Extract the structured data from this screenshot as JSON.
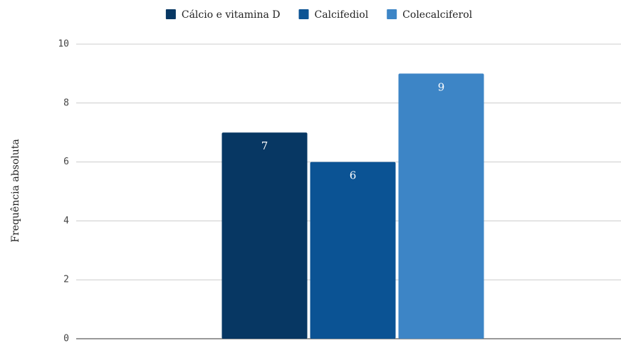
{
  "chart_data": {
    "type": "bar",
    "categories": [
      null
    ],
    "series": [
      {
        "name": "Cálcio e vitamina D",
        "color": "#073763",
        "values": [
          7
        ]
      },
      {
        "name": "Calcifediol",
        "color": "#0b5394",
        "values": [
          6
        ]
      },
      {
        "name": "Colecalciferol",
        "color": "#3d85c6",
        "values": [
          9
        ]
      }
    ],
    "ylabel": "Frequência absoluta",
    "ylim": [
      0,
      10
    ],
    "yticks": [
      0,
      2,
      4,
      6,
      8,
      10
    ],
    "grid": true,
    "legend": "top"
  }
}
